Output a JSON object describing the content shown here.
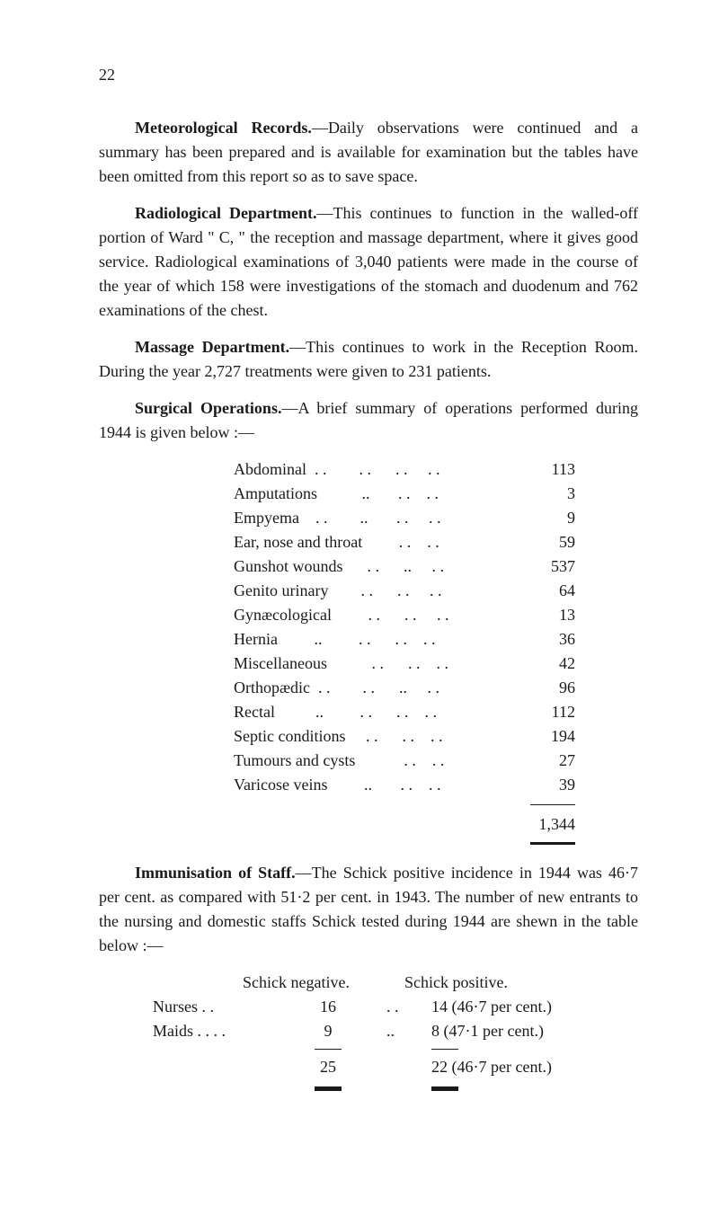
{
  "page_number": "22",
  "paragraphs": {
    "meteorological": {
      "heading": "Meteorological Records.",
      "body": "—Daily observations were continued and a summary has been prepared and is available for examination but the tables have been omitted from this report so as to save space."
    },
    "radiological": {
      "heading": "Radiological Department.",
      "body": "—This continues to function in the walled-off portion of Ward \" C, \" the reception and massage department, where it gives good service. Radiological examinations of 3,040 patients were made in the course of the year of which 158 were investigations of the stomach and duodenum and 762 examinations of the chest."
    },
    "massage": {
      "heading": "Massage Department.",
      "body": "—This continues to work in the Reception Room. During the year 2,727 treatments were given to 231 patients."
    },
    "surgical": {
      "heading": "Surgical Operations.",
      "body": "—A brief summary of operations performed during 1944 is given below :—"
    },
    "immunisation": {
      "heading": "Immunisation of Staff.",
      "body": "—The Schick positive incidence in 1944 was 46·7 per cent. as compared with 51·2 per cent. in 1943. The number of new entrants to the nursing and domestic staffs Schick tested during 1944 are shewn in the table below :—"
    }
  },
  "operations": {
    "rows": [
      {
        "label": "Abdominal  . .        . .      . .     . .",
        "value": "113"
      },
      {
        "label": "Amputations           ..       . .    . .",
        "value": "3"
      },
      {
        "label": "Empyema    . .        ..       . .     . .",
        "value": "9"
      },
      {
        "label": "Ear, nose and throat         . .    . .",
        "value": "59"
      },
      {
        "label": "Gunshot wounds      . .      ..     . .",
        "value": "537"
      },
      {
        "label": "Genito urinary        . .      . .     . .",
        "value": "64"
      },
      {
        "label": "Gynæcological         . .      . .     . .",
        "value": "13"
      },
      {
        "label": "Hernia         ..         . .      . .    . .",
        "value": "36"
      },
      {
        "label": "Miscellaneous           . .      . .    . .",
        "value": "42"
      },
      {
        "label": "Orthopædic  . .        . .      ..     . .",
        "value": "96"
      },
      {
        "label": "Rectal          ..         . .      . .    . .",
        "value": "112"
      },
      {
        "label": "Septic conditions     . .      . .    . .",
        "value": "194"
      },
      {
        "label": "Tumours and cysts            . .    . .",
        "value": "27"
      },
      {
        "label": "Varicose veins         ..       . .    . .",
        "value": "39"
      }
    ],
    "total": "1,344",
    "note_mark": "·"
  },
  "schick": {
    "header_neg": "Schick negative.",
    "header_pos": "Schick positive.",
    "rows": [
      {
        "label": "Nurses      . .",
        "neg": "16",
        "dots": ". .",
        "pos": "14 (46·7 per cent.)"
      },
      {
        "label": "Maids . .   . .",
        "neg": "9",
        "dots": "..",
        "pos": "8 (47·1 per cent.)"
      }
    ],
    "totals": {
      "neg": "25",
      "pos": "22 (46·7 per cent.)"
    }
  }
}
